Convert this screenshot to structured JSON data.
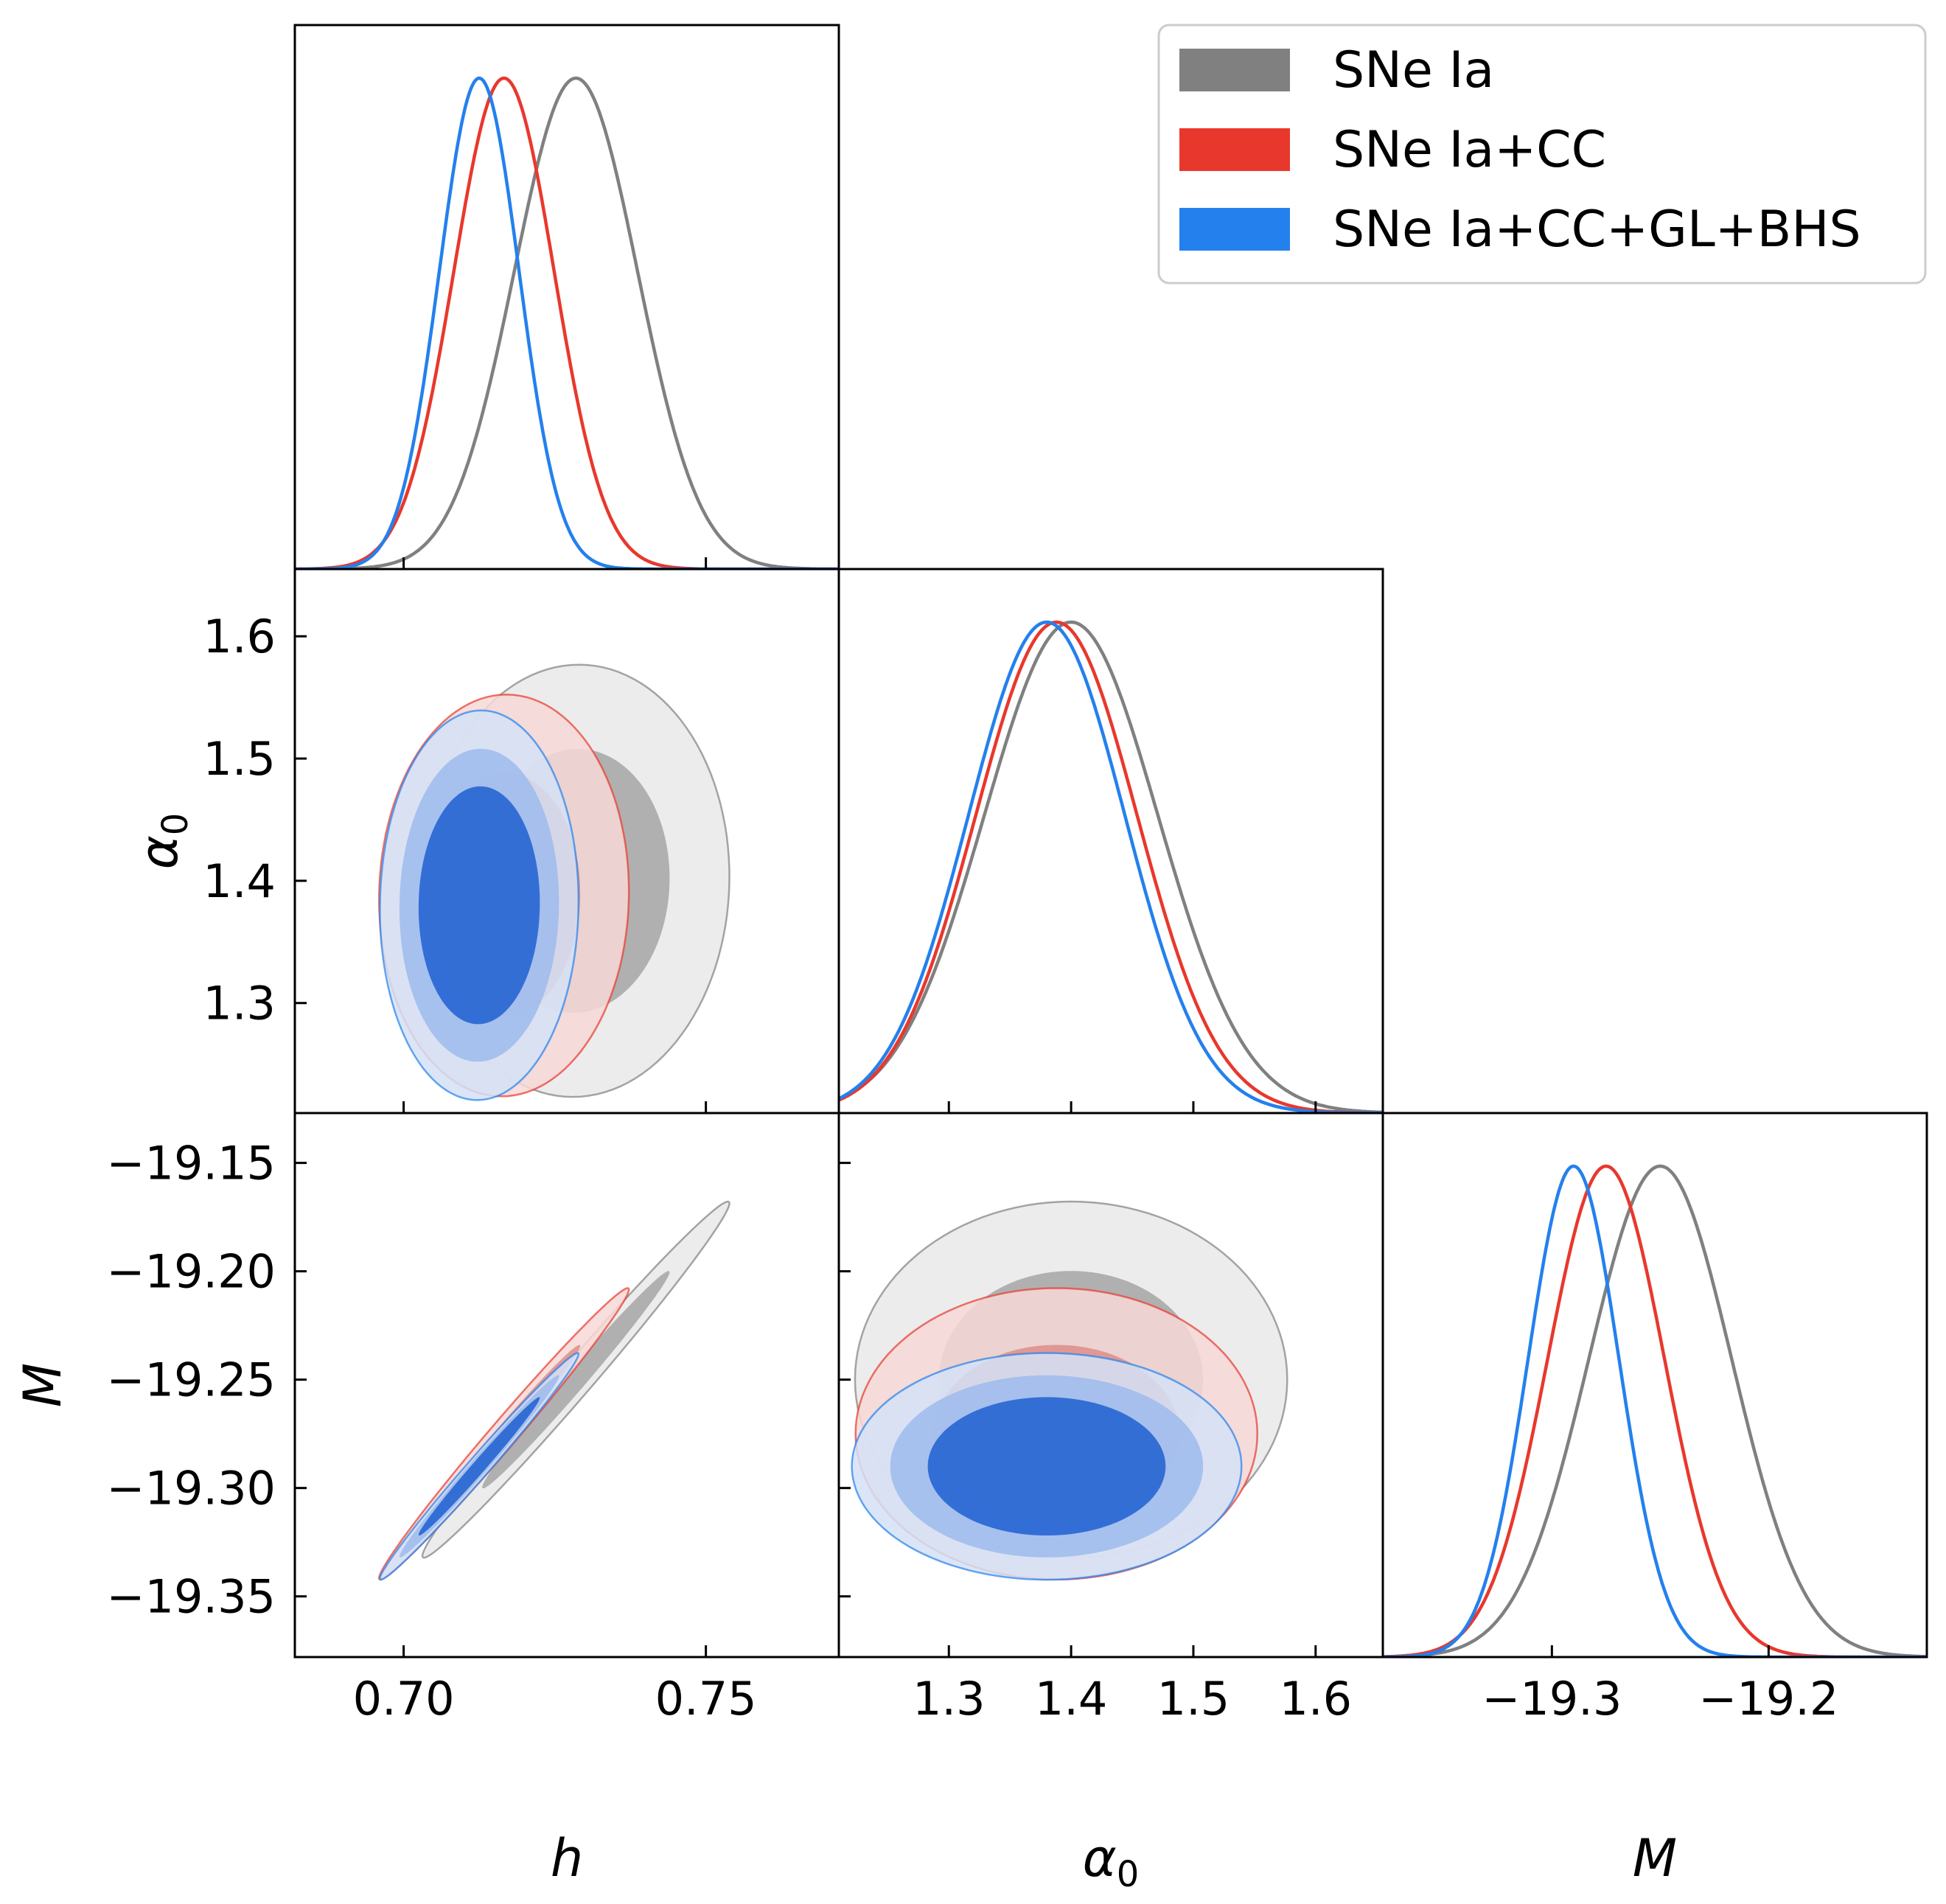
{
  "chart_data": {
    "type": "corner",
    "parameters": [
      {
        "key": "h",
        "label": "h",
        "range": [
          0.682,
          0.772
        ],
        "ticks": [
          0.7,
          0.75
        ],
        "tick_labels": [
          "0.70",
          "0.75"
        ]
      },
      {
        "key": "alpha0",
        "label": "α",
        "label_sub": "0",
        "range": [
          1.21,
          1.655
        ],
        "ticks": [
          1.3,
          1.4,
          1.5,
          1.6
        ],
        "tick_labels": [
          "1.3",
          "1.4",
          "1.5",
          "1.6"
        ]
      },
      {
        "key": "M",
        "label": "M",
        "range": [
          -19.378,
          -19.127
        ],
        "ticks": [
          -19.35,
          -19.3,
          -19.25,
          -19.2,
          -19.15
        ],
        "tick_labels": [
          "−19.35",
          "−19.30",
          "−19.25",
          "−19.20",
          "−19.15"
        ],
        "tick_labels_x": [
          "−19.3",
          "−19.2"
        ],
        "ticks_x": [
          -19.3,
          -19.2
        ]
      }
    ],
    "series": [
      {
        "name": "SNe Ia",
        "color": "#808080",
        "fill_inner": "#a6a6a6",
        "fill_outer": "#e9e9e9",
        "mean": {
          "h": 0.7285,
          "alpha0": 1.4,
          "M": -19.25
        },
        "sigma": {
          "h": 0.0102,
          "alpha0": 0.071,
          "M": 0.033
        },
        "corr": {
          "h_alpha0": 0.02,
          "h_M": 0.99,
          "alpha0_M": 0.0
        }
      },
      {
        "name": "SNe Ia+CC",
        "color": "#e8382d",
        "fill_inner": "#dd8e89",
        "fill_outer": "#f7d8d6",
        "mean": {
          "h": 0.7166,
          "alpha0": 1.388,
          "M": -19.275
        },
        "sigma": {
          "h": 0.0083,
          "alpha0": 0.066,
          "M": 0.027
        },
        "corr": {
          "h_alpha0": 0.02,
          "h_M": 0.99,
          "alpha0_M": 0.0
        }
      },
      {
        "name": "SNe Ia+CC+GL+BHS",
        "color": "#2480ed",
        "fill_inner": "#1f5fd1",
        "fill_outer": "#d4e2f7",
        "fill_mid": "#9dbbec",
        "mean": {
          "h": 0.7125,
          "alpha0": 1.38,
          "M": -19.29
        },
        "sigma": {
          "h": 0.0066,
          "alpha0": 0.064,
          "M": 0.021
        },
        "corr": {
          "h_alpha0": 0.02,
          "h_M": 0.99,
          "alpha0_M": 0.0
        }
      }
    ],
    "legend": {
      "position": "top-right",
      "entries": [
        "SNe Ia",
        "SNe Ia+CC",
        "SNe Ia+CC+GL+BHS"
      ]
    }
  }
}
